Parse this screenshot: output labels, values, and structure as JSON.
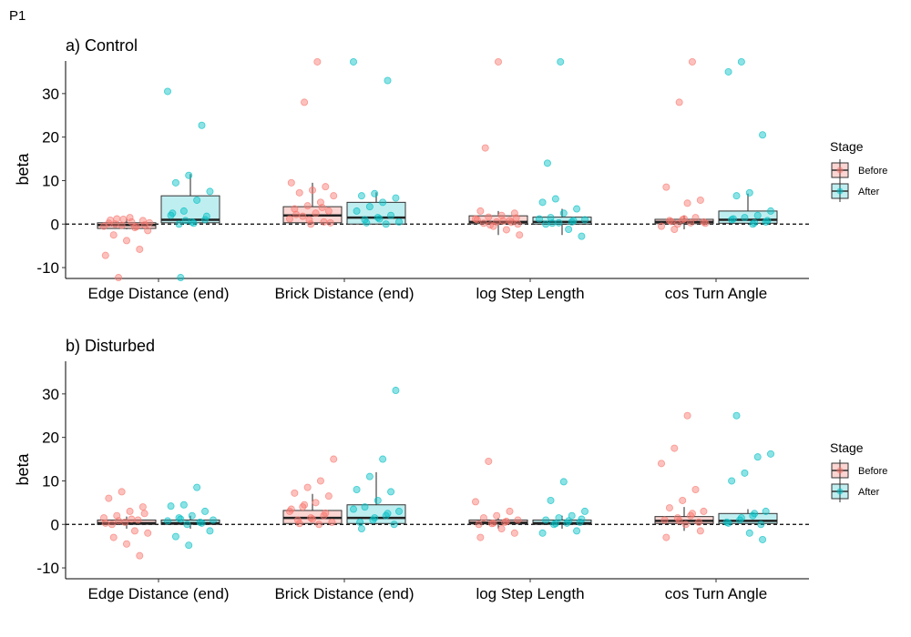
{
  "figure_label": "P1",
  "legend": {
    "title": "Stage",
    "items": [
      {
        "label": "Before",
        "fill": "#fbd5d2",
        "stroke": "#333333",
        "point": "#f8766d"
      },
      {
        "label": "After",
        "fill": "#bfeef0",
        "stroke": "#333333",
        "point": "#00bfc4"
      }
    ]
  },
  "chart_data": [
    {
      "type": "boxplot",
      "title": "a) Control",
      "ylabel": "beta",
      "ylim": [
        -12.5,
        37.5
      ],
      "yticks": [
        -10,
        0,
        10,
        20,
        30
      ],
      "categories": [
        "Edge Distance (end)",
        "Brick Distance (end)",
        "log Step Length",
        "cos Turn Angle"
      ],
      "reference_line": 0,
      "grid": false,
      "legend_position": "right",
      "series": [
        {
          "name": "Before",
          "boxes": [
            {
              "q1": -1,
              "median": -0.2,
              "q3": 0.3,
              "wmin": -1.2,
              "wmax": 1.3
            },
            {
              "q1": 0.3,
              "median": 2,
              "q3": 4,
              "wmin": 0,
              "wmax": 9.5
            },
            {
              "q1": 0.1,
              "median": 0.5,
              "q3": 1.9,
              "wmin": -2.5,
              "wmax": 3
            },
            {
              "q1": 0.1,
              "median": 0.5,
              "q3": 1.1,
              "wmin": -1.2,
              "wmax": 2
            }
          ],
          "points": [
            [
              -0.5,
              1.2,
              1.5,
              0.8,
              0.2,
              -0.3,
              -0.8,
              -1.5,
              -2.5,
              -3.8,
              -5.8,
              -7.2,
              -12.3,
              0.5,
              -0.2,
              0.9,
              1.1,
              -0.6,
              0.3,
              0.0
            ],
            [
              0,
              0.5,
              1.2,
              1.8,
              2.5,
              3.0,
              3.5,
              4.2,
              5.0,
              6.5,
              7.2,
              7.8,
              8.6,
              9.5,
              28,
              37.3,
              0.3,
              2.2,
              1.0,
              3.8
            ],
            [
              0,
              0.2,
              0.5,
              0.8,
              1.2,
              1.6,
              2.0,
              2.5,
              3.0,
              -0.5,
              -1.3,
              -2.5,
              17.5,
              37.3,
              0.4,
              1.0,
              -0.2,
              0.7,
              1.4
            ],
            [
              0,
              0.3,
              0.5,
              0.8,
              1.0,
              1.5,
              -0.5,
              -1.2,
              4.8,
              5.5,
              8.5,
              28,
              37.3,
              0.2,
              0.6,
              1.2
            ]
          ]
        },
        {
          "name": "After",
          "boxes": [
            {
              "q1": 0.3,
              "median": 1,
              "q3": 6.5,
              "wmin": 0,
              "wmax": 11.5
            },
            {
              "q1": 0,
              "median": 1.5,
              "q3": 5,
              "wmin": 0,
              "wmax": 7.3
            },
            {
              "q1": 0,
              "median": 0.5,
              "q3": 1.6,
              "wmin": -2.5,
              "wmax": 3.5
            },
            {
              "q1": 0.2,
              "median": 1,
              "q3": 3,
              "wmin": 0,
              "wmax": 7
            }
          ],
          "points": [
            [
              0,
              0.5,
              1.0,
              2.0,
              3.0,
              5.5,
              7.5,
              9.5,
              11.2,
              22.7,
              30.5,
              -12.3,
              0.2,
              1.8,
              2.5,
              0.8
            ],
            [
              0,
              0.5,
              1.0,
              1.5,
              2.0,
              3.0,
              4.0,
              5.0,
              6.0,
              6.5,
              7.0,
              33,
              37.3,
              0.3,
              1.2
            ],
            [
              0,
              0.3,
              0.5,
              1.0,
              1.5,
              2.5,
              3.5,
              5.0,
              5.8,
              -1.2,
              -2.8,
              14,
              37.3,
              0.8,
              1.2,
              0.2
            ],
            [
              0,
              0.5,
              1.0,
              1.5,
              2.0,
              3.0,
              6.5,
              7.2,
              20.5,
              35,
              37.3,
              0.3,
              0.8,
              1.2
            ]
          ]
        }
      ]
    },
    {
      "type": "boxplot",
      "title": "b) Disturbed",
      "ylabel": "beta",
      "ylim": [
        -12.5,
        37.5
      ],
      "yticks": [
        -10,
        0,
        10,
        20,
        30
      ],
      "categories": [
        "Edge Distance (end)",
        "Brick Distance (end)",
        "log Step Length",
        "cos Turn Angle"
      ],
      "reference_line": 0,
      "grid": false,
      "legend_position": "right",
      "series": [
        {
          "name": "Before",
          "boxes": [
            {
              "q1": 0,
              "median": 0.3,
              "q3": 1,
              "wmin": -1,
              "wmax": 1.8
            },
            {
              "q1": 0.2,
              "median": 1.5,
              "q3": 3.2,
              "wmin": 0,
              "wmax": 7
            },
            {
              "q1": 0.1,
              "median": 0.4,
              "q3": 1,
              "wmin": -1,
              "wmax": 1.5
            },
            {
              "q1": 0.2,
              "median": 0.8,
              "q3": 1.8,
              "wmin": -1.5,
              "wmax": 4
            }
          ],
          "points": [
            [
              0,
              0.5,
              1.0,
              1.5,
              2.0,
              3.0,
              4.0,
              6.0,
              7.5,
              -1.5,
              -2.0,
              -3.0,
              -4.5,
              -7.2,
              0.3,
              0.8,
              1.2,
              2.5
            ],
            [
              0,
              0.5,
              1.0,
              1.5,
              2.0,
              3.0,
              4.0,
              5.0,
              6.5,
              7.2,
              8.5,
              10.0,
              15.0,
              0.2,
              1.2,
              2.6,
              3.5,
              4.5
            ],
            [
              0,
              0.2,
              0.5,
              1.0,
              1.5,
              2.0,
              3.0,
              5.2,
              14.5,
              -1.0,
              -2.0,
              -3.0,
              0.3,
              0.7
            ],
            [
              0,
              0.5,
              1.0,
              1.5,
              2.0,
              3.0,
              3.8,
              5.5,
              8.0,
              14.0,
              17.5,
              25.0,
              -1.5,
              -3.0,
              0.8,
              2.5
            ]
          ]
        },
        {
          "name": "After",
          "boxes": [
            {
              "q1": 0,
              "median": 0.3,
              "q3": 1,
              "wmin": -1,
              "wmax": 2
            },
            {
              "q1": 0.2,
              "median": 1.5,
              "q3": 4.5,
              "wmin": 0,
              "wmax": 12
            },
            {
              "q1": 0,
              "median": 0.3,
              "q3": 1,
              "wmin": -1,
              "wmax": 2
            },
            {
              "q1": 0.2,
              "median": 0.8,
              "q3": 2.5,
              "wmin": 0,
              "wmax": 3.5
            }
          ],
          "points": [
            [
              0,
              0.5,
              1.0,
              1.5,
              2.0,
              3.0,
              4.2,
              4.5,
              8.5,
              -1.5,
              -2.8,
              -4.8,
              0.3,
              0.8,
              1.2
            ],
            [
              0,
              0.5,
              1.0,
              2.0,
              3.0,
              4.0,
              5.5,
              7.5,
              8.0,
              11.0,
              15.0,
              30.8,
              -1.0,
              1.5,
              2.5,
              3.5
            ],
            [
              0,
              0.3,
              0.5,
              1.0,
              1.5,
              2.0,
              3.0,
              5.5,
              9.8,
              -1.5,
              -2.0,
              0.2,
              0.8,
              1.2
            ],
            [
              0,
              0.5,
              1.0,
              2.0,
              3.0,
              10.0,
              11.8,
              15.5,
              16.2,
              25.0,
              -2.0,
              -3.5,
              0.3,
              1.5,
              2.5
            ]
          ]
        }
      ]
    }
  ]
}
